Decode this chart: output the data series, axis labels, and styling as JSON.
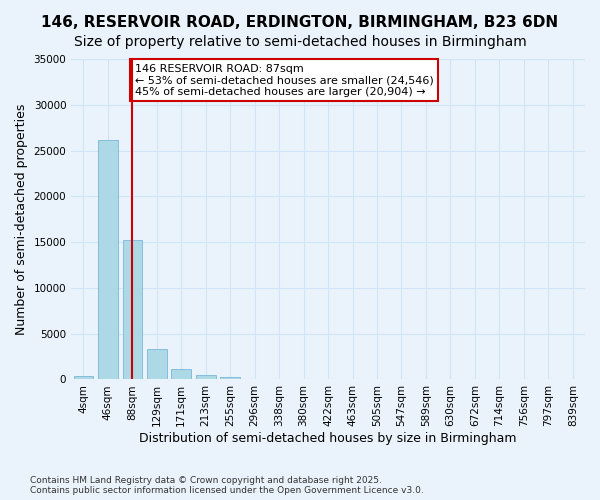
{
  "title_line1": "146, RESERVOIR ROAD, ERDINGTON, BIRMINGHAM, B23 6DN",
  "title_line2": "Size of property relative to semi-detached houses in Birmingham",
  "xlabel": "Distribution of semi-detached houses by size in Birmingham",
  "ylabel": "Number of semi-detached properties",
  "bin_labels": [
    "4sqm",
    "46sqm",
    "88sqm",
    "129sqm",
    "171sqm",
    "213sqm",
    "255sqm",
    "296sqm",
    "338sqm",
    "380sqm",
    "422sqm",
    "463sqm",
    "505sqm",
    "547sqm",
    "589sqm",
    "630sqm",
    "672sqm",
    "714sqm",
    "756sqm",
    "797sqm",
    "839sqm"
  ],
  "bar_values": [
    400,
    26100,
    15200,
    3300,
    1100,
    500,
    300,
    100,
    50,
    20,
    10,
    5,
    2,
    1,
    1,
    0,
    0,
    0,
    0,
    0,
    0
  ],
  "bar_color": "#add8e6",
  "bar_edge_color": "#6baed6",
  "grid_color": "#d0e4f7",
  "bg_color": "#eaf3fb",
  "annotation_text": "146 RESERVOIR ROAD: 87sqm\n← 53% of semi-detached houses are smaller (24,546)\n45% of semi-detached houses are larger (20,904) →",
  "annotation_box_color": "#ffffff",
  "annotation_box_edge": "#cc0000",
  "red_line_x": 2.0,
  "ylim": [
    0,
    35000
  ],
  "yticks": [
    0,
    5000,
    10000,
    15000,
    20000,
    25000,
    30000,
    35000
  ],
  "footnote": "Contains HM Land Registry data © Crown copyright and database right 2025.\nContains public sector information licensed under the Open Government Licence v3.0.",
  "title_fontsize": 11,
  "subtitle_fontsize": 10,
  "axis_label_fontsize": 9,
  "tick_fontsize": 7.5,
  "annotation_fontsize": 8
}
